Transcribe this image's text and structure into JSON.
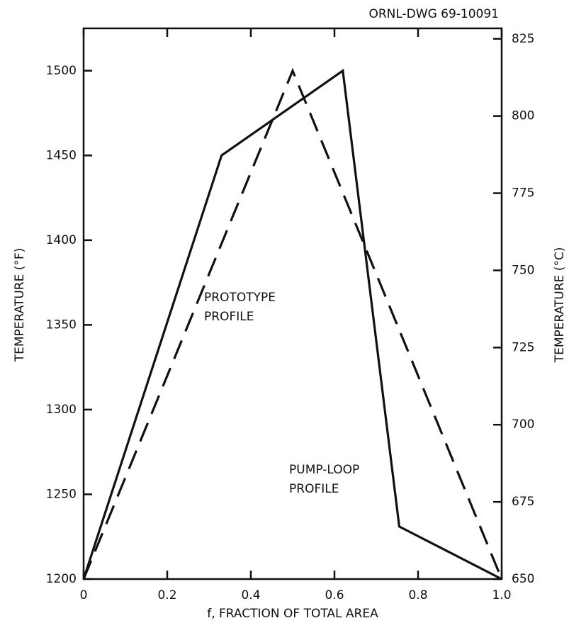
{
  "chart_data": {
    "type": "line",
    "annotation": "ORNL-DWG 69-10091",
    "xlabel": "f, FRACTION OF TOTAL AREA",
    "ylabel": "TEMPERATURE (°F)",
    "y2label": "TEMPERATURE (°C)",
    "x": [
      0,
      0.33,
      0.5,
      0.62,
      0.755,
      1.0
    ],
    "series": [
      {
        "name": "PROTOTYPE PROFILE",
        "color": "#111111",
        "dash": true,
        "values": [
          1200,
          null,
          1500,
          null,
          null,
          1200
        ]
      },
      {
        "name": "PUMP-LOOP PROFILE",
        "color": "#111111",
        "dash": false,
        "values": [
          1200,
          1450,
          null,
          1500,
          1231,
          1200
        ]
      }
    ],
    "xlim": [
      0,
      1.0
    ],
    "xticks": [
      0,
      0.2,
      0.4,
      0.6,
      0.8,
      {
        "value": 1.0,
        "label": "1.0"
      }
    ],
    "ylim": [
      1200,
      1525
    ],
    "yticks": [
      1200,
      1250,
      1300,
      1350,
      1400,
      1450,
      1500
    ],
    "y2lim": [
      650,
      828.4
    ],
    "y2ticks": [
      650,
      675,
      700,
      725,
      750,
      775,
      800,
      825
    ],
    "grid": false
  }
}
